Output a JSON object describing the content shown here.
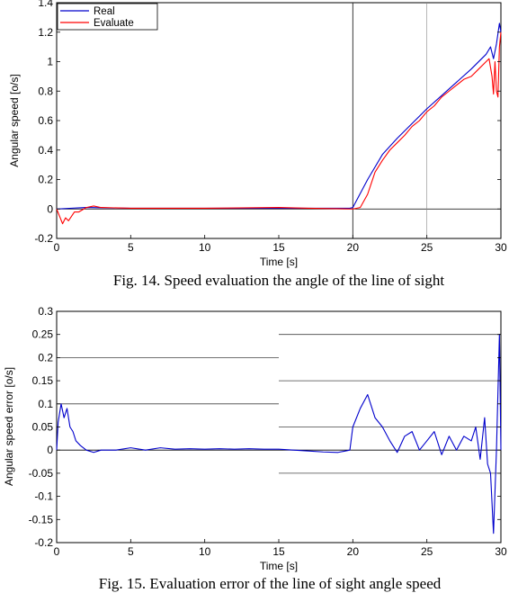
{
  "chart_data": [
    {
      "type": "line",
      "xlabel": "Time [s]",
      "ylabel": "Angular speed [o/s]",
      "caption": "Fig. 14. Speed evaluation the angle of the line of sight",
      "xlim": [
        0,
        30
      ],
      "ylim": [
        -0.2,
        1.4
      ],
      "x_ticks": [
        0,
        5,
        10,
        15,
        20,
        25,
        30
      ],
      "x_tick_labels": [
        "0",
        "5",
        "10",
        "15",
        "20",
        "25",
        "30"
      ],
      "y_ticks": [
        -0.2,
        0,
        0.2,
        0.4,
        0.6,
        0.8,
        1,
        1.2,
        1.4
      ],
      "y_tick_labels": [
        "-0.2",
        "0",
        "0.2",
        "0.4",
        "0.6",
        "0.8",
        "1",
        "1.2",
        "1.4"
      ],
      "legend_placement": "top-left",
      "zero_line": 0,
      "vertical_lines": [
        20,
        25
      ],
      "series": [
        {
          "name": "Real",
          "color": "#0000cc",
          "x": [
            0,
            2,
            5,
            10,
            15,
            19.8,
            20,
            21,
            22,
            23,
            24,
            25,
            26,
            27,
            28,
            29,
            29.3,
            29.5,
            29.7,
            29.9,
            30
          ],
          "y": [
            0,
            0.01,
            0.005,
            0.005,
            0.005,
            0.005,
            0.01,
            0.2,
            0.37,
            0.48,
            0.58,
            0.68,
            0.77,
            0.86,
            0.95,
            1.05,
            1.1,
            1.02,
            1.12,
            1.26,
            1.2
          ]
        },
        {
          "name": "Evaluate",
          "color": "#ff0000",
          "x": [
            0,
            0.2,
            0.4,
            0.6,
            0.8,
            1.0,
            1.2,
            1.5,
            2.0,
            2.5,
            3,
            5,
            10,
            15,
            17,
            20,
            20.5,
            21,
            21.5,
            22,
            22.5,
            23,
            23.5,
            24,
            24.5,
            25,
            25.5,
            26,
            26.5,
            27,
            27.5,
            28,
            28.5,
            29,
            29.2,
            29.4,
            29.5,
            29.6,
            29.7,
            29.8,
            29.9,
            30
          ],
          "y": [
            0,
            -0.05,
            -0.1,
            -0.06,
            -0.08,
            -0.05,
            -0.02,
            -0.02,
            0.01,
            0.02,
            0.01,
            0.005,
            0.005,
            0.01,
            0.005,
            0.0,
            0.01,
            0.1,
            0.25,
            0.33,
            0.4,
            0.45,
            0.5,
            0.56,
            0.6,
            0.66,
            0.7,
            0.76,
            0.8,
            0.84,
            0.88,
            0.9,
            0.95,
            1.0,
            1.02,
            0.9,
            0.78,
            1.0,
            0.8,
            0.76,
            1.1,
            1.2
          ]
        }
      ]
    },
    {
      "type": "line",
      "xlabel": "Time [s]",
      "ylabel": "Angular speed error [o/s]",
      "caption": "Fig. 15. Evaluation error of the line of sight angle speed",
      "xlim": [
        0,
        30
      ],
      "ylim": [
        -0.2,
        0.3
      ],
      "x_ticks": [
        0,
        5,
        10,
        15,
        20,
        25,
        30
      ],
      "x_tick_labels": [
        "0",
        "5",
        "10",
        "15",
        "20",
        "25",
        "30"
      ],
      "y_ticks": [
        -0.2,
        -0.15,
        -0.1,
        -0.05,
        0,
        0.05,
        0.1,
        0.15,
        0.2,
        0.25,
        0.3
      ],
      "y_tick_labels": [
        "-0.2",
        "-0.15",
        "-0.1",
        "-0.05",
        "0",
        "0.05",
        "0.1",
        "0.15",
        "0.2",
        "0.25",
        "0.3"
      ],
      "legend_placement": "none",
      "zero_line": 0,
      "reference_lines_left": {
        "x_range": [
          0,
          15
        ],
        "y": [
          0.2,
          0.1
        ]
      },
      "reference_lines_right": {
        "x_range": [
          15,
          30
        ],
        "y": [
          0.25,
          0.15,
          0.05,
          -0.05
        ]
      },
      "series": [
        {
          "name": "",
          "color": "#0000cc",
          "x": [
            0,
            0.1,
            0.3,
            0.5,
            0.7,
            0.9,
            1.1,
            1.3,
            1.6,
            2.0,
            2.5,
            3,
            4,
            5,
            6,
            7,
            8,
            9,
            10,
            11,
            12,
            13,
            14,
            15,
            16,
            17,
            18,
            19,
            19.8,
            20,
            20.5,
            21,
            21.5,
            22,
            22.5,
            23,
            23.5,
            24,
            24.5,
            25,
            25.5,
            26,
            26.5,
            27,
            27.5,
            28,
            28.3,
            28.6,
            28.9,
            29.1,
            29.3,
            29.5,
            29.7,
            29.9,
            30
          ],
          "y": [
            0,
            0.06,
            0.1,
            0.07,
            0.09,
            0.05,
            0.04,
            0.02,
            0.01,
            0.0,
            -0.005,
            0.0,
            0.0,
            0.005,
            0.0,
            0.005,
            0.002,
            0.003,
            0.002,
            0.003,
            0.002,
            0.003,
            0.002,
            0.002,
            0.0,
            -0.002,
            -0.004,
            -0.005,
            0.0,
            0.05,
            0.09,
            0.12,
            0.07,
            0.05,
            0.02,
            -0.005,
            0.03,
            0.04,
            0.0,
            0.02,
            0.04,
            -0.01,
            0.03,
            0.0,
            0.03,
            0.02,
            0.05,
            -0.02,
            0.07,
            -0.03,
            -0.05,
            -0.18,
            0.0,
            0.25,
            0.0
          ]
        }
      ]
    }
  ]
}
